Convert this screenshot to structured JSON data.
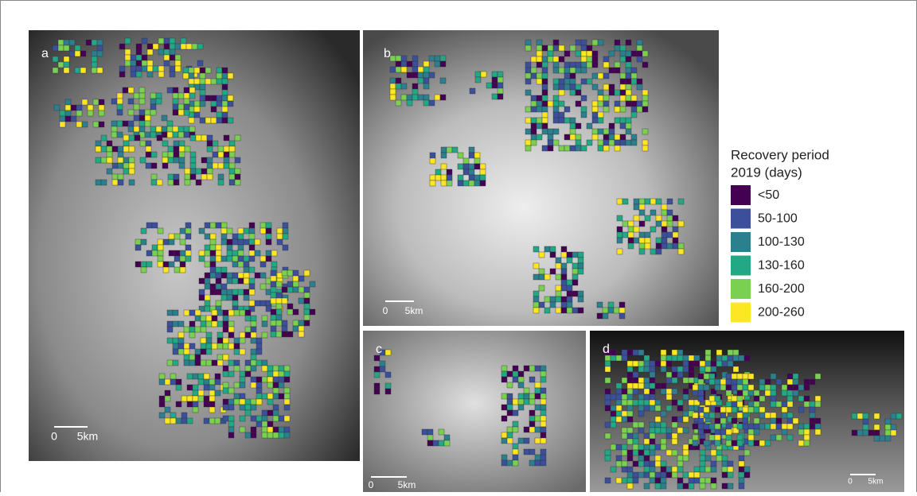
{
  "panels": [
    {
      "label": "a",
      "scale_labels": [
        "0",
        "5km"
      ]
    },
    {
      "label": "b",
      "scale_labels": [
        "0",
        "5km"
      ]
    },
    {
      "label": "c",
      "scale_labels": [
        "0",
        "5km"
      ]
    },
    {
      "label": "d",
      "scale_labels": [
        "0",
        "5km"
      ]
    }
  ],
  "legend": {
    "title": [
      "Recovery period",
      "2019 (days)"
    ],
    "items": [
      {
        "label": "<50",
        "color": "#440154"
      },
      {
        "label": "50-100",
        "color": "#3b4f9a"
      },
      {
        "label": "100-130",
        "color": "#2c7f8e"
      },
      {
        "label": "130-160",
        "color": "#22a884"
      },
      {
        "label": "160-200",
        "color": "#7ad151"
      },
      {
        "label": "200-260",
        "color": "#fde725"
      }
    ]
  }
}
